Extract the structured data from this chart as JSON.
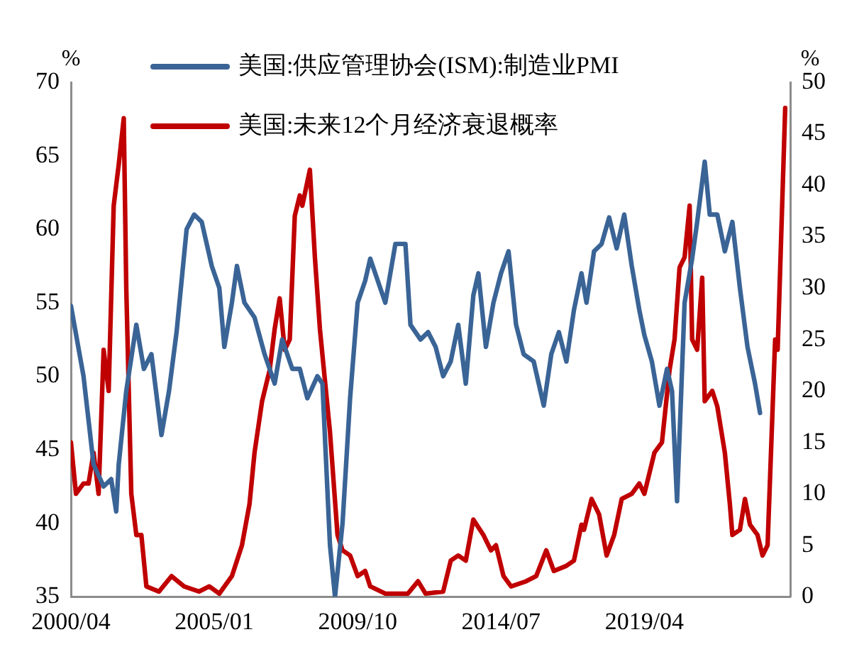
{
  "chart_data": {
    "type": "line",
    "ylabel": "%",
    "y2label": "%",
    "xlim": [
      "2000-04",
      "2024-02"
    ],
    "xticks": [
      {
        "value": "2000-04",
        "label": "2000/04"
      },
      {
        "value": "2005-01",
        "label": "2005/01"
      },
      {
        "value": "2009-10",
        "label": "2009/10"
      },
      {
        "value": "2014-07",
        "label": "2014/07"
      },
      {
        "value": "2019-04",
        "label": "2019/04"
      }
    ],
    "ylim": [
      35,
      70
    ],
    "yticks": [
      35,
      40,
      45,
      50,
      55,
      60,
      65,
      70
    ],
    "y2lim": [
      0,
      50
    ],
    "y2ticks": [
      0,
      5,
      10,
      15,
      20,
      25,
      30,
      35,
      40,
      45,
      50
    ],
    "grid": false,
    "legend": "top",
    "marker": "none",
    "line_style": "solid",
    "series": [
      {
        "name": "美国:供应管理协会(ISM):制造业PMI",
        "color": "#3a6496",
        "x": [
          "2000-04",
          "2000-09",
          "2001-01",
          "2001-05",
          "2001-08",
          "2001-10",
          "2001-11",
          "2002-02",
          "2002-06",
          "2002-09",
          "2002-12",
          "2003-04",
          "2003-07",
          "2003-10",
          "2004-02",
          "2004-05",
          "2004-08",
          "2004-12",
          "2005-03",
          "2005-05",
          "2005-08",
          "2005-10",
          "2006-01",
          "2006-05",
          "2006-09",
          "2007-01",
          "2007-04",
          "2007-08",
          "2007-11",
          "2008-02",
          "2008-06",
          "2008-08",
          "2008-11",
          "2009-01",
          "2009-04",
          "2009-07",
          "2009-10",
          "2010-01",
          "2010-03",
          "2010-06",
          "2010-09",
          "2011-01",
          "2011-05",
          "2011-07",
          "2011-11",
          "2012-02",
          "2012-05",
          "2012-08",
          "2012-11",
          "2013-02",
          "2013-05",
          "2013-08",
          "2013-10",
          "2014-01",
          "2014-04",
          "2014-07",
          "2014-10",
          "2015-01",
          "2015-04",
          "2015-08",
          "2015-12",
          "2016-03",
          "2016-06",
          "2016-09",
          "2016-12",
          "2017-03",
          "2017-05",
          "2017-08",
          "2017-11",
          "2018-02",
          "2018-05",
          "2018-08",
          "2018-11",
          "2019-02",
          "2019-04",
          "2019-07",
          "2019-10",
          "2020-01",
          "2020-03",
          "2020-05",
          "2020-08",
          "2020-11",
          "2021-01",
          "2021-04",
          "2021-06",
          "2021-09",
          "2021-12",
          "2022-03",
          "2022-06",
          "2022-09",
          "2022-12",
          "2023-02"
        ],
        "values": [
          54.8,
          50,
          44,
          42.5,
          43,
          40.8,
          44,
          49,
          53.5,
          50.5,
          51.5,
          46,
          49,
          53,
          60,
          61,
          60.5,
          57.5,
          56,
          52,
          55,
          57.5,
          55,
          54,
          51.5,
          49.5,
          52.5,
          50.5,
          50.5,
          48.5,
          50,
          49.5,
          38.5,
          35,
          40,
          48.5,
          55,
          56.5,
          58,
          56.5,
          55,
          59,
          59,
          53.5,
          52.5,
          53,
          52,
          50,
          51,
          53.5,
          49.5,
          55.5,
          57,
          52,
          55,
          57,
          58.5,
          53.5,
          51.5,
          51,
          48,
          51.5,
          53,
          51,
          54.5,
          57,
          55,
          58.5,
          59,
          60.8,
          58.7,
          61,
          57.5,
          54.5,
          52.8,
          51,
          48,
          50.5,
          49,
          41.5,
          55,
          58,
          60.5,
          64.6,
          61,
          61,
          58.5,
          60.5,
          56,
          52,
          49.5,
          47.5
        ]
      },
      {
        "name": "美国:未来12个月经济衰退概率",
        "color": "#c00000",
        "axis": "y2",
        "x": [
          "2000-04",
          "2000-06",
          "2000-09",
          "2000-11",
          "2001-01",
          "2001-03",
          "2001-05",
          "2001-07",
          "2001-09",
          "2001-11",
          "2002-01",
          "2002-02",
          "2002-04",
          "2002-06",
          "2002-08",
          "2002-10",
          "2003-03",
          "2003-08",
          "2004-01",
          "2004-07",
          "2004-11",
          "2005-03",
          "2005-08",
          "2005-12",
          "2006-03",
          "2006-05",
          "2006-08",
          "2006-11",
          "2007-01",
          "2007-03",
          "2007-05",
          "2007-07",
          "2007-09",
          "2007-11",
          "2007-12",
          "2008-03",
          "2008-05",
          "2008-07",
          "2008-09",
          "2008-11",
          "2009-02",
          "2009-04",
          "2009-07",
          "2009-10",
          "2010-01",
          "2010-03",
          "2010-09",
          "2011-06",
          "2011-10",
          "2012-01",
          "2012-08",
          "2012-11",
          "2013-02",
          "2013-05",
          "2013-08",
          "2013-12",
          "2014-03",
          "2014-05",
          "2014-08",
          "2014-11",
          "2015-05",
          "2015-09",
          "2016-01",
          "2016-04",
          "2016-09",
          "2016-12",
          "2017-03",
          "2017-04",
          "2017-07",
          "2017-10",
          "2018-01",
          "2018-04",
          "2018-07",
          "2018-11",
          "2019-02",
          "2019-04",
          "2019-08",
          "2019-11",
          "2020-02",
          "2020-04",
          "2020-06",
          "2020-08",
          "2020-10",
          "2020-11",
          "2021-01",
          "2021-03",
          "2021-04",
          "2021-07",
          "2021-09",
          "2021-12",
          "2022-02",
          "2022-03",
          "2022-06",
          "2022-08",
          "2022-10",
          "2023-01",
          "2023-03",
          "2023-05",
          "2023-08",
          "2023-09",
          "2023-12"
        ],
        "values": [
          15,
          10,
          11,
          11,
          14,
          10,
          24,
          20,
          38,
          42,
          46.5,
          30,
          10,
          6,
          6,
          1,
          0.5,
          2,
          1,
          0.5,
          1,
          0.3,
          2,
          5,
          9,
          14,
          19,
          22,
          26,
          29,
          24,
          25,
          37,
          39,
          38,
          41.5,
          33,
          26,
          21,
          16,
          6,
          4.5,
          4,
          2,
          2.5,
          1,
          0.3,
          0.3,
          1.5,
          0.3,
          0.5,
          3.5,
          4,
          3.5,
          7.5,
          6,
          4.5,
          5,
          2,
          1,
          1.5,
          2,
          4.5,
          2.5,
          3,
          3.5,
          7,
          6.5,
          9.5,
          8,
          4,
          6,
          9.5,
          10,
          11,
          10,
          14,
          15,
          22,
          25,
          32,
          33,
          38,
          25,
          24,
          31,
          19,
          20,
          18.5,
          14,
          9,
          6,
          6.5,
          9.5,
          7,
          6,
          4,
          5,
          25,
          24,
          47.5
        ]
      }
    ]
  }
}
